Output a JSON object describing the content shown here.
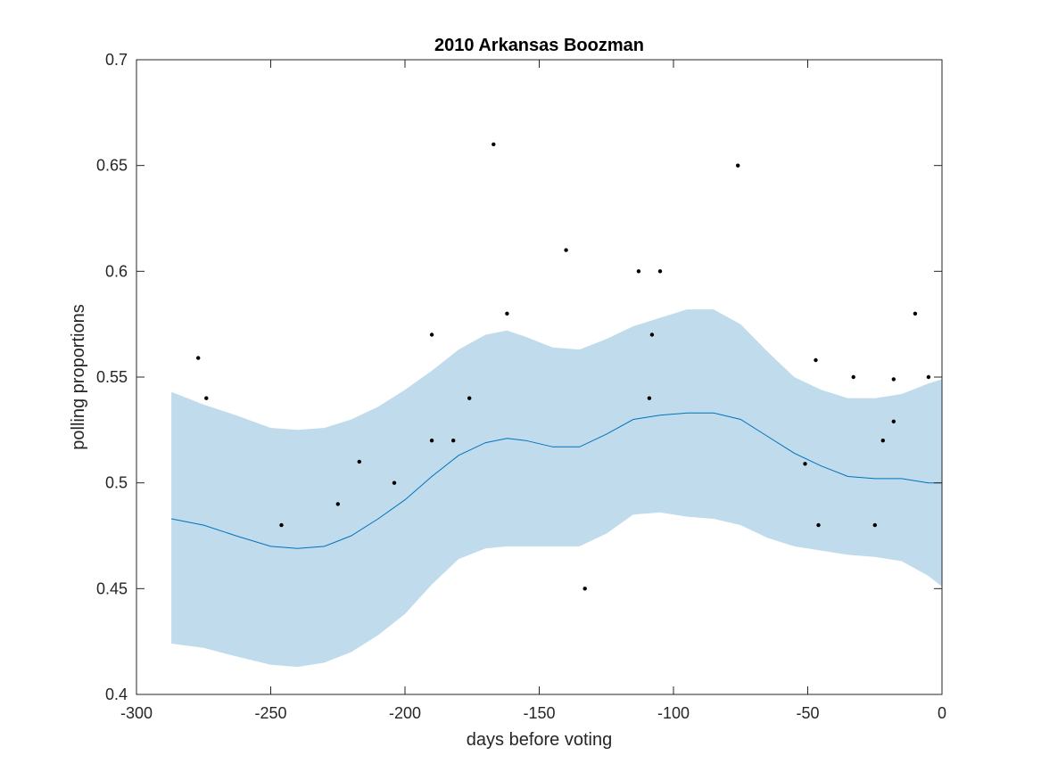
{
  "chart_data": {
    "type": "line",
    "title": "2010 Arkansas Boozman",
    "xlabel": "days before voting",
    "ylabel": "polling proportions",
    "xlim": [
      -300,
      0
    ],
    "ylim": [
      0.4,
      0.7
    ],
    "xticks": [
      -300,
      -250,
      -200,
      -150,
      -100,
      -50,
      0
    ],
    "yticks": [
      0.4,
      0.45,
      0.5,
      0.55,
      0.6,
      0.65,
      0.7
    ],
    "xtick_labels": [
      "-300",
      "-250",
      "-200",
      "-150",
      "-100",
      "-50",
      "0"
    ],
    "ytick_labels": [
      "0.4",
      "0.45",
      "0.5",
      "0.55",
      "0.6",
      "0.65",
      "0.7"
    ],
    "grid": false,
    "colors": {
      "mean_line": "#0072bd",
      "band_fill": "#c0dcec",
      "points": "#000000",
      "axes": "#262626"
    },
    "series": [
      {
        "type": "line",
        "x": [
          -287,
          -275,
          -263,
          -250,
          -240,
          -230,
          -220,
          -210,
          -200,
          -190,
          -180,
          -170,
          -162,
          -155,
          -145,
          -135,
          -125,
          -115,
          -105,
          -95,
          -85,
          -75,
          -65,
          -55,
          -45,
          -35,
          -25,
          -15,
          -5,
          0
        ],
        "values": [
          0.483,
          0.48,
          0.475,
          0.47,
          0.469,
          0.47,
          0.475,
          0.483,
          0.492,
          0.503,
          0.513,
          0.519,
          0.521,
          0.52,
          0.517,
          0.517,
          0.523,
          0.53,
          0.532,
          0.533,
          0.533,
          0.53,
          0.522,
          0.514,
          0.508,
          0.503,
          0.502,
          0.502,
          0.5,
          0.5
        ]
      },
      {
        "type": "area",
        "x": [
          -287,
          -275,
          -263,
          -250,
          -240,
          -230,
          -220,
          -210,
          -200,
          -190,
          -180,
          -170,
          -162,
          -155,
          -145,
          -135,
          -125,
          -115,
          -105,
          -95,
          -85,
          -75,
          -65,
          -55,
          -45,
          -35,
          -25,
          -15,
          -5,
          0
        ],
        "upper": [
          0.543,
          0.537,
          0.532,
          0.526,
          0.525,
          0.526,
          0.53,
          0.536,
          0.544,
          0.553,
          0.563,
          0.57,
          0.572,
          0.569,
          0.564,
          0.563,
          0.568,
          0.574,
          0.578,
          0.582,
          0.582,
          0.575,
          0.562,
          0.55,
          0.544,
          0.54,
          0.54,
          0.542,
          0.547,
          0.549
        ],
        "lower": [
          0.424,
          0.422,
          0.418,
          0.414,
          0.413,
          0.415,
          0.42,
          0.428,
          0.438,
          0.452,
          0.464,
          0.469,
          0.47,
          0.47,
          0.47,
          0.47,
          0.476,
          0.485,
          0.486,
          0.484,
          0.483,
          0.48,
          0.474,
          0.47,
          0.468,
          0.466,
          0.465,
          0.463,
          0.456,
          0.451
        ]
      },
      {
        "type": "scatter",
        "x": [
          -277,
          -274,
          -246,
          -225,
          -217,
          -204,
          -190,
          -190,
          -182,
          -176,
          -167,
          -162,
          -140,
          -133,
          -113,
          -109,
          -108,
          -105,
          -76,
          -51,
          -47,
          -46,
          -33,
          -25,
          -22,
          -18,
          -18,
          -10,
          -5
        ],
        "values": [
          0.559,
          0.54,
          0.48,
          0.49,
          0.51,
          0.5,
          0.57,
          0.52,
          0.52,
          0.54,
          0.66,
          0.58,
          0.61,
          0.45,
          0.6,
          0.54,
          0.57,
          0.6,
          0.65,
          0.509,
          0.558,
          0.48,
          0.55,
          0.48,
          0.52,
          0.549,
          0.529,
          0.58,
          0.55
        ]
      }
    ]
  }
}
